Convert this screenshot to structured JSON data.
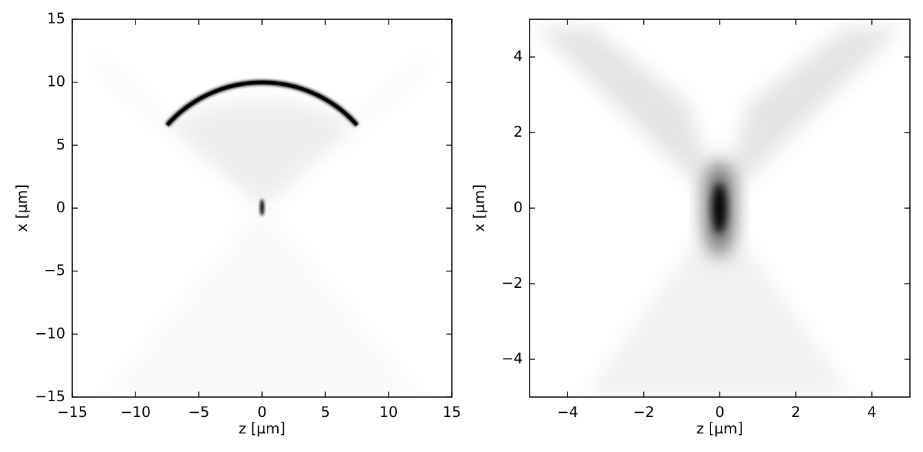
{
  "chart_data": [
    {
      "type": "heatmap",
      "xlabel": "z [µm]",
      "ylabel": "x [µm]",
      "xlim": [
        -15,
        15
      ],
      "ylim": [
        -15,
        15
      ],
      "xticks": [
        {
          "value": -15,
          "label": "−15"
        },
        {
          "value": -10,
          "label": "−10"
        },
        {
          "value": -5,
          "label": "−5"
        },
        0,
        5,
        10,
        15
      ],
      "yticks": [
        {
          "value": -15,
          "label": "−15"
        },
        {
          "value": -10,
          "label": "−10"
        },
        {
          "value": -5,
          "label": "−5"
        },
        0,
        5,
        10,
        15
      ]
    },
    {
      "type": "heatmap",
      "xlabel": "z [µm]",
      "ylabel": "x [µm]",
      "xlim": [
        -5,
        5
      ],
      "ylim": [
        -5,
        5
      ],
      "xticks": [
        {
          "value": -4,
          "label": "−4"
        },
        {
          "value": -2,
          "label": "−2"
        },
        0,
        2,
        4
      ],
      "yticks": [
        {
          "value": -4,
          "label": "−4"
        },
        {
          "value": -2,
          "label": "−2"
        },
        0,
        2,
        4
      ]
    }
  ]
}
